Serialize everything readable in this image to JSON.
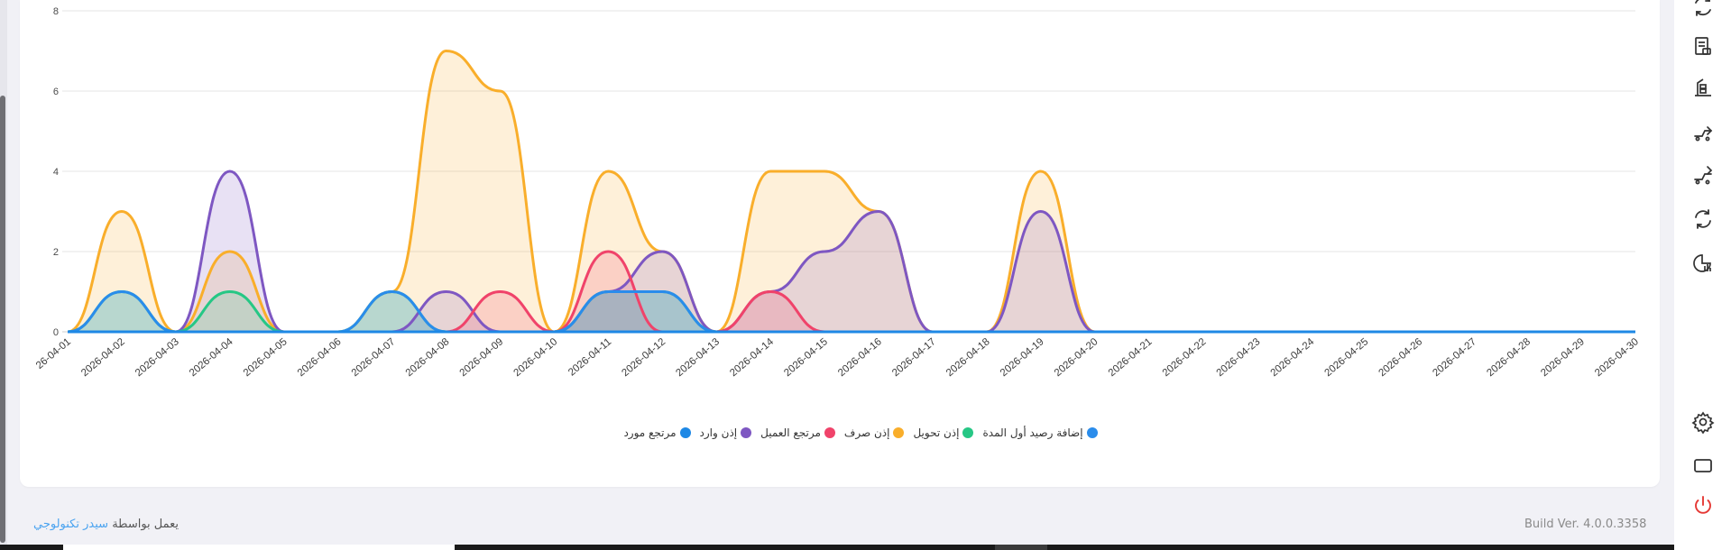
{
  "chart_data": {
    "type": "area",
    "smooth": true,
    "categories": [
      "2026-04-01",
      "2026-04-02",
      "2026-04-03",
      "2026-04-04",
      "2026-04-05",
      "2026-04-06",
      "2026-04-07",
      "2026-04-08",
      "2026-04-09",
      "2026-04-10",
      "2026-04-11",
      "2026-04-12",
      "2026-04-13",
      "2026-04-14",
      "2026-04-15",
      "2026-04-16",
      "2026-04-17",
      "2026-04-18",
      "2026-04-19",
      "2026-04-20",
      "2026-04-21",
      "2026-04-22",
      "2026-04-23",
      "2026-04-24",
      "2026-04-25",
      "2026-04-26",
      "2026-04-27",
      "2026-04-28",
      "2026-04-29",
      "2026-04-30"
    ],
    "x_tick_labels": [
      "26-04-01",
      "2026-04-02",
      "2026-04-03",
      "2026-04-04",
      "2026-04-05",
      "2026-04-06",
      "2026-04-07",
      "2026-04-08",
      "2026-04-09",
      "2026-04-10",
      "2026-04-11",
      "2026-04-12",
      "2026-04-13",
      "2026-04-14",
      "2026-04-15",
      "2026-04-16",
      "2026-04-17",
      "2026-04-18",
      "2026-04-19",
      "2026-04-20",
      "2026-04-21",
      "2026-04-22",
      "2026-04-23",
      "2026-04-24",
      "2026-04-25",
      "2026-04-26",
      "2026-04-27",
      "2026-04-28",
      "2026-04-29",
      "2026-04-30"
    ],
    "ylim": [
      0,
      8
    ],
    "y_ticks": [
      0,
      2,
      4,
      6,
      8
    ],
    "grid": true,
    "legend_position": "bottom-center",
    "series": [
      {
        "name": "مرتجع مورد",
        "color": "#1E88E5",
        "values": [
          0,
          0,
          0,
          0,
          0,
          0,
          0,
          0,
          0,
          0,
          0,
          0,
          0,
          0,
          0,
          0,
          0,
          0,
          0,
          0,
          0,
          0,
          0,
          0,
          0,
          0,
          0,
          0,
          0,
          0
        ]
      },
      {
        "name": "إذن وارد",
        "color": "#7E57C2",
        "values": [
          0,
          0,
          0,
          4,
          0,
          0,
          0,
          1,
          0,
          0,
          1,
          2,
          0,
          1,
          2,
          3,
          0,
          0,
          3,
          0,
          0,
          0,
          0,
          0,
          0,
          0,
          0,
          0,
          0,
          0
        ]
      },
      {
        "name": "مرتجع العميل",
        "color": "#F0436A",
        "values": [
          0,
          0,
          0,
          0,
          0,
          0,
          0,
          0,
          1,
          0,
          2,
          0,
          0,
          1,
          0,
          0,
          0,
          0,
          0,
          0,
          0,
          0,
          0,
          0,
          0,
          0,
          0,
          0,
          0,
          0
        ]
      },
      {
        "name": "إذن صرف",
        "color": "#F9AE2B",
        "values": [
          0,
          3,
          0,
          2,
          0,
          0,
          1,
          7,
          6,
          0,
          4,
          2,
          0,
          4,
          4,
          3,
          0,
          0,
          4,
          0,
          0,
          0,
          0,
          0,
          0,
          0,
          0,
          0,
          0,
          0
        ]
      },
      {
        "name": "إذن تحويل",
        "color": "#26C785",
        "values": [
          0,
          1,
          0,
          1,
          0,
          0,
          1,
          0,
          0,
          0,
          1,
          1,
          0,
          0,
          0,
          0,
          0,
          0,
          0,
          0,
          0,
          0,
          0,
          0,
          0,
          0,
          0,
          0,
          0,
          0
        ]
      },
      {
        "name": "إضافة رصيد أول المدة",
        "color": "#2A8CEB",
        "values": [
          0,
          1,
          0,
          0,
          0,
          0,
          1,
          0,
          0,
          0,
          1,
          1,
          0,
          0,
          0,
          0,
          0,
          0,
          0,
          0,
          0,
          0,
          0,
          0,
          0,
          0,
          0,
          0,
          0,
          0
        ]
      }
    ]
  },
  "sidebar_icons": [
    "refresh-icon",
    "receipt-icon",
    "inventory-icon",
    "transfer-icon",
    "transfer-out-icon",
    "sync-icon",
    "chart-icon",
    "settings-icon",
    "window-icon",
    "power-icon"
  ],
  "footer": {
    "powered_by": "يعمل بواسطة",
    "brand": "سيدر تكنولوجي",
    "build": "Build Ver. 4.0.0.3358"
  },
  "colors": {
    "accent": "#4aa3f0",
    "power": "#e53935",
    "icon": "#333333"
  }
}
